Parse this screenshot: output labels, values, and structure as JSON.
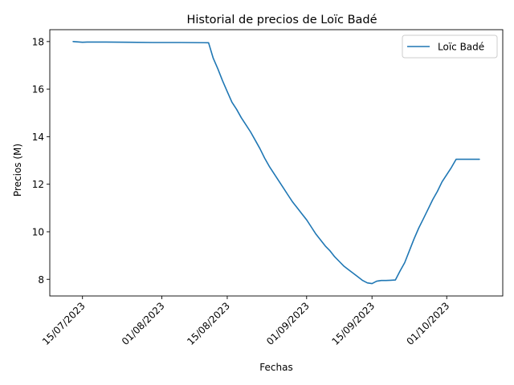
{
  "chart_data": {
    "type": "line",
    "title": "Historial de precios de Loïc Badé",
    "xlabel": "Fechas",
    "ylabel": "Precios (M)",
    "x_tick_labels": [
      "15/07/2023",
      "01/08/2023",
      "15/08/2023",
      "01/09/2023",
      "15/09/2023",
      "01/10/2023"
    ],
    "x_ticks": [
      "2023-07-15",
      "2023-08-01",
      "2023-08-15",
      "2023-09-01",
      "2023-09-15",
      "2023-10-01"
    ],
    "y_ticks": [
      8,
      10,
      12,
      14,
      16,
      18
    ],
    "xlim": [
      "2023-07-08",
      "2023-10-13"
    ],
    "ylim": [
      7.3,
      18.5
    ],
    "grid": false,
    "legend_position": "top-right",
    "series": [
      {
        "name": "Loïc Badé",
        "color": "#1f77b4",
        "x": [
          "2023-07-13",
          "2023-07-15",
          "2023-07-16",
          "2023-07-20",
          "2023-07-25",
          "2023-07-30",
          "2023-08-05",
          "2023-08-11",
          "2023-08-12",
          "2023-08-13",
          "2023-08-14",
          "2023-08-15",
          "2023-08-16",
          "2023-08-17",
          "2023-08-18",
          "2023-08-19",
          "2023-08-20",
          "2023-08-21",
          "2023-08-22",
          "2023-08-23",
          "2023-08-24",
          "2023-08-25",
          "2023-08-26",
          "2023-08-27",
          "2023-08-28",
          "2023-08-29",
          "2023-08-30",
          "2023-08-31",
          "2023-09-01",
          "2023-09-02",
          "2023-09-03",
          "2023-09-04",
          "2023-09-05",
          "2023-09-06",
          "2023-09-07",
          "2023-09-08",
          "2023-09-09",
          "2023-09-10",
          "2023-09-11",
          "2023-09-12",
          "2023-09-13",
          "2023-09-14",
          "2023-09-15",
          "2023-09-16",
          "2023-09-17",
          "2023-09-18",
          "2023-09-19",
          "2023-09-20",
          "2023-09-21",
          "2023-09-22",
          "2023-09-23",
          "2023-09-24",
          "2023-09-25",
          "2023-09-26",
          "2023-09-27",
          "2023-09-28",
          "2023-09-29",
          "2023-09-30",
          "2023-10-01",
          "2023-10-02",
          "2023-10-03",
          "2023-10-04",
          "2023-10-05",
          "2023-10-06",
          "2023-10-07",
          "2023-10-08"
        ],
        "y": [
          18.0,
          17.97,
          17.98,
          17.98,
          17.97,
          17.96,
          17.96,
          17.95,
          17.3,
          16.85,
          16.35,
          15.9,
          15.45,
          15.15,
          14.8,
          14.5,
          14.2,
          13.85,
          13.5,
          13.1,
          12.75,
          12.45,
          12.15,
          11.85,
          11.55,
          11.25,
          11.0,
          10.75,
          10.5,
          10.2,
          9.9,
          9.65,
          9.4,
          9.2,
          8.95,
          8.75,
          8.55,
          8.4,
          8.25,
          8.1,
          7.95,
          7.85,
          7.82,
          7.92,
          7.95,
          7.95,
          7.96,
          7.97,
          8.35,
          8.7,
          9.2,
          9.7,
          10.15,
          10.55,
          10.95,
          11.35,
          11.7,
          12.1,
          12.4,
          12.7,
          13.05,
          13.05,
          13.05,
          13.05,
          13.05,
          13.05
        ]
      }
    ]
  }
}
